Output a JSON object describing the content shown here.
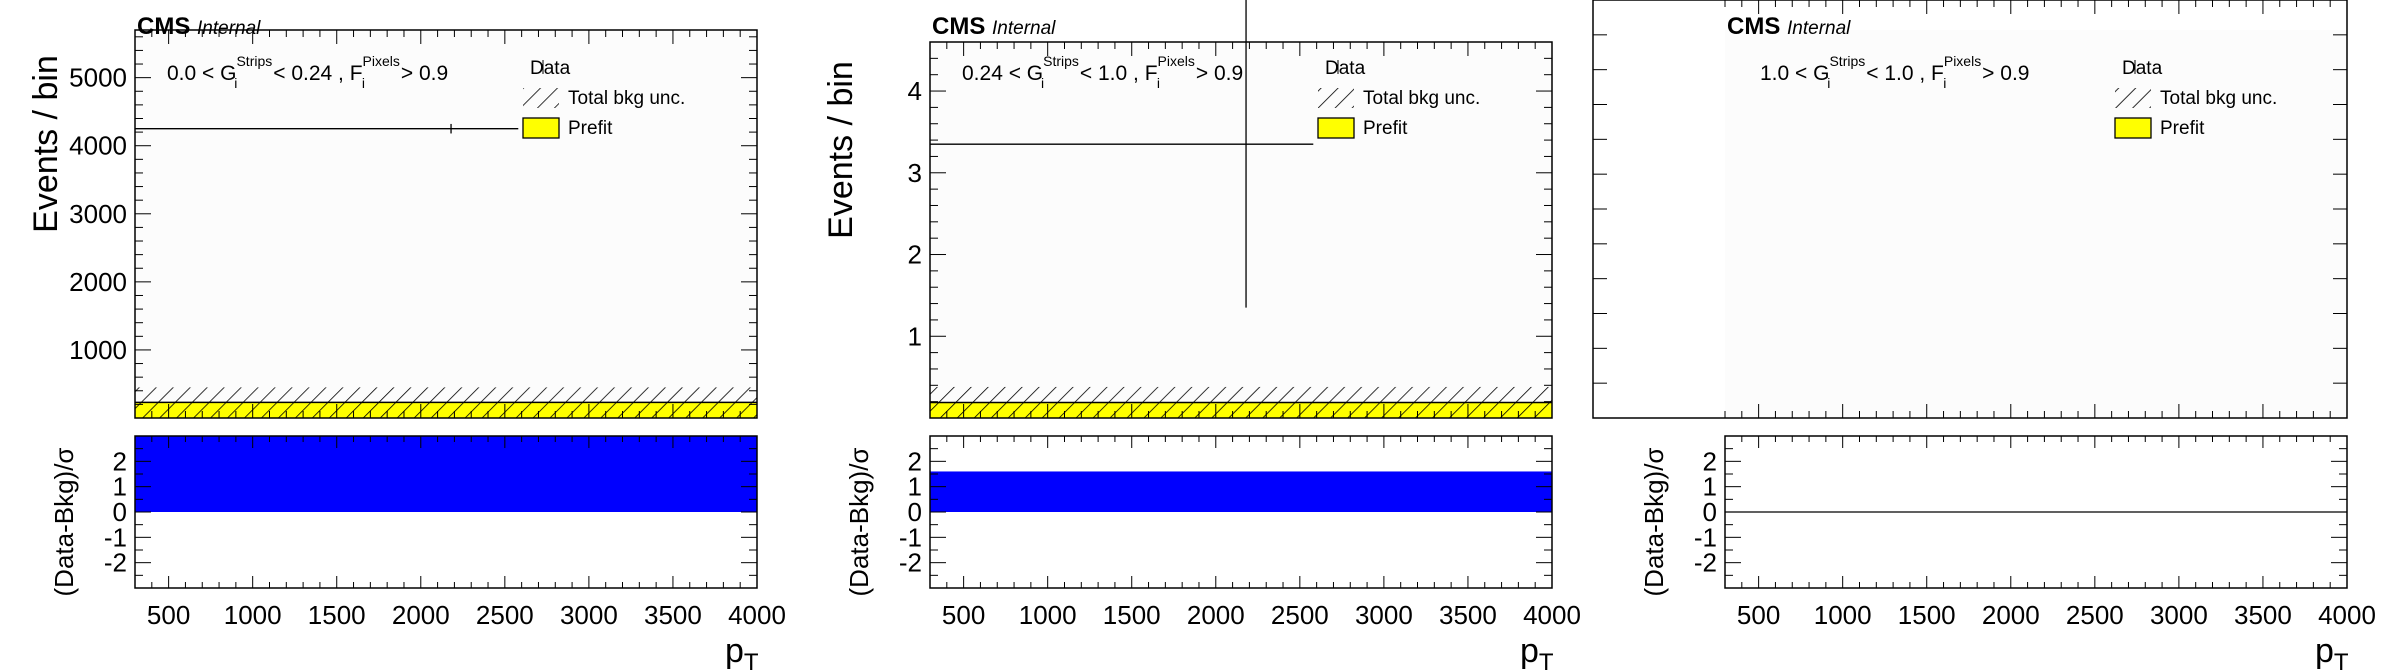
{
  "colors": {
    "prefit": "#ffff00",
    "pull": "#0000ff",
    "data": "#000000",
    "frame": "#000000",
    "background": "#ffffff",
    "plot_area": "#fcfcfc"
  },
  "chart_data": [
    {
      "type": "bar",
      "experiment": "CMS",
      "status": "Internal",
      "selection": {
        "lo": "0.0",
        "mid": "0.24",
        "fv": "Pixels",
        "gs": "Strips",
        "fcut": "0.9"
      },
      "ylabel": "Events / bin",
      "xlabel": "p",
      "xlabel_sub": "T",
      "ratio_ylabel": "(Data-Bkg)/σ",
      "xlim": [
        300,
        4000
      ],
      "ylim": [
        0,
        5700
      ],
      "y_ticks": [
        1000,
        2000,
        3000,
        4000,
        5000
      ],
      "x_ticks": [
        500,
        1000,
        1500,
        2000,
        2500,
        3000,
        3500,
        4000
      ],
      "ratio_ylim": [
        -3,
        3
      ],
      "ratio_ticks": [
        -2,
        -1,
        0,
        1,
        2
      ],
      "legend": [
        "Data",
        "Total bkg unc.",
        "Prefit"
      ],
      "legend_position": "top-right",
      "data": {
        "x": 2180,
        "xlo": 300,
        "xhi": 2580,
        "y": 4250,
        "yerr": 70
      },
      "prefit": {
        "xlo": 300,
        "xhi": 4000,
        "y": 230
      },
      "bkg_unc": {
        "ylo": 0,
        "yhi": 450
      },
      "pull": {
        "xlo": 300,
        "xhi": 4000,
        "value": 3.0
      }
    },
    {
      "type": "bar",
      "experiment": "CMS",
      "status": "Internal",
      "selection": {
        "lo": "0.24",
        "mid": "1.0",
        "fv": "Pixels",
        "gs": "Strips",
        "fcut": "0.9"
      },
      "ylabel": "Events / bin",
      "xlabel": "p",
      "xlabel_sub": "T",
      "ratio_ylabel": "(Data-Bkg)/σ",
      "xlim": [
        300,
        4000
      ],
      "ylim": [
        0,
        4.6
      ],
      "y_ticks": [
        1,
        2,
        3,
        4
      ],
      "x_ticks": [
        500,
        1000,
        1500,
        2000,
        2500,
        3000,
        3500,
        4000
      ],
      "ratio_ylim": [
        -3,
        3
      ],
      "ratio_ticks": [
        -2,
        -1,
        0,
        1,
        2
      ],
      "legend": [
        "Data",
        "Total bkg unc.",
        "Prefit"
      ],
      "legend_position": "top-right",
      "data": {
        "x": 2180,
        "xlo": 300,
        "xhi": 2580,
        "y": 3.35,
        "yerr": 2.0
      },
      "prefit": {
        "xlo": 300,
        "xhi": 4000,
        "y": 0.19
      },
      "bkg_unc": {
        "ylo": 0,
        "yhi": 0.38
      },
      "pull": {
        "xlo": 300,
        "xhi": 4000,
        "value": 1.6
      }
    },
    {
      "type": "bar",
      "experiment": "CMS",
      "status": "Internal",
      "selection": {
        "lo": "1.0",
        "mid": "1.0",
        "fv": "Pixels",
        "gs": "Strips",
        "fcut": "0.9"
      },
      "ylabel": "",
      "xlabel": "p",
      "xlabel_sub": "T",
      "ratio_ylabel": "(Data-Bkg)/σ",
      "xlim": [
        300,
        4000
      ],
      "ylim": [
        0,
        1
      ],
      "y_ticks": [],
      "x_ticks": [
        500,
        1000,
        1500,
        2000,
        2500,
        3000,
        3500,
        4000
      ],
      "ratio_ylim": [
        -3,
        3
      ],
      "ratio_ticks": [
        -2,
        -1,
        0,
        1,
        2
      ],
      "legend": [
        "Data",
        "Total bkg unc.",
        "Prefit"
      ],
      "legend_position": "top-right",
      "data": null,
      "prefit": null,
      "bkg_unc": null,
      "pull": {
        "xlo": 300,
        "xhi": 4000,
        "value": 0
      }
    }
  ]
}
